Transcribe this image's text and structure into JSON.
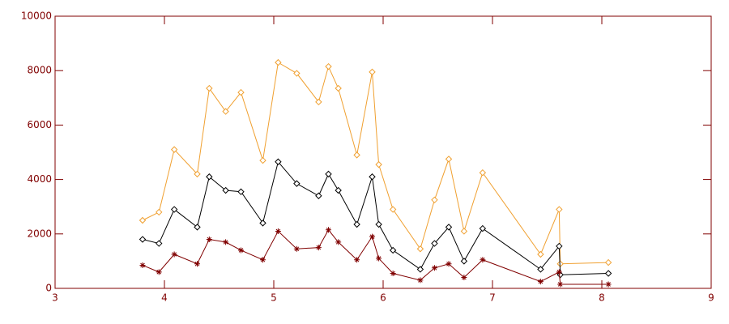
{
  "chart_data": {
    "type": "line",
    "x": [
      3.8,
      3.95,
      4.09,
      4.3,
      4.41,
      4.56,
      4.7,
      4.9,
      5.04,
      5.21,
      5.41,
      5.5,
      5.59,
      5.76,
      5.9,
      5.96,
      6.09,
      6.34,
      6.47,
      6.6,
      6.74,
      6.91,
      7.44,
      7.61,
      7.62,
      8.06
    ],
    "series": [
      {
        "color": "#f0a030",
        "marker": "diamond",
        "values": [
          2500,
          2800,
          5100,
          4200,
          7350,
          6500,
          7200,
          4700,
          8300,
          7900,
          6850,
          8150,
          7350,
          4900,
          7950,
          4550,
          2900,
          1450,
          3250,
          4750,
          2100,
          4250,
          1250,
          2900,
          900,
          950
        ]
      },
      {
        "color": "#000000",
        "marker": "diamond",
        "values": [
          1800,
          1650,
          2900,
          2250,
          4100,
          3600,
          3550,
          2400,
          4650,
          3850,
          3400,
          4200,
          3600,
          2350,
          4100,
          2350,
          1400,
          700,
          1650,
          2250,
          1000,
          2200,
          700,
          1550,
          500,
          550
        ]
      },
      {
        "color": "#800000",
        "marker": "asterisk",
        "values": [
          850,
          600,
          1250,
          900,
          1800,
          1700,
          1400,
          1050,
          2100,
          1450,
          1500,
          2150,
          1700,
          1050,
          1900,
          1100,
          550,
          300,
          750,
          900,
          400,
          1050,
          250,
          600,
          150,
          150
        ]
      }
    ],
    "axis_color": "#800000",
    "xlim": [
      3,
      9
    ],
    "xticks": [
      3,
      4,
      5,
      6,
      7,
      8,
      9
    ],
    "ylim": [
      0,
      10000
    ],
    "yticks": [
      0,
      2000,
      4000,
      6000,
      8000,
      10000
    ]
  }
}
